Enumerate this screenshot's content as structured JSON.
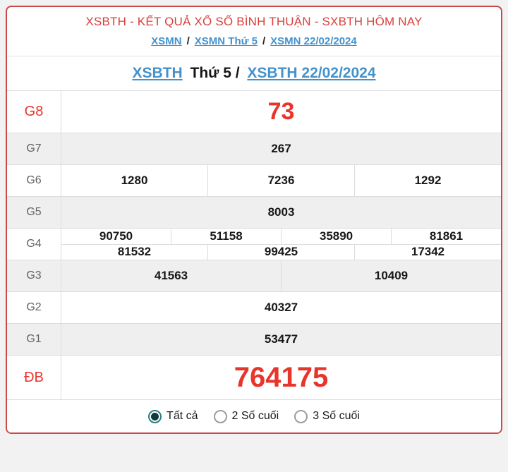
{
  "colors": {
    "red": "#e8352b",
    "title-red": "#d9403c",
    "border-red": "#c9494d",
    "blue": "#4292cd",
    "stripe": "#efefef",
    "teal": "#2a7f7f",
    "teal-dark": "#11393e"
  },
  "header": {
    "title": "XSBTH - KẾT QUẢ XỔ SỐ BÌNH THUẬN - SXBTH HÔM NAY"
  },
  "breadcrumb": {
    "separator": "/",
    "items": [
      "XSMN",
      "XSMN Thứ 5",
      "XSMN 22/02/2024"
    ]
  },
  "subheader": {
    "link1": "XSBTH",
    "middle": "Thứ 5 /",
    "link2": "XSBTH 22/02/2024"
  },
  "table": {
    "rows": [
      {
        "id": "g8",
        "label": "G8",
        "red": true,
        "size": "xl",
        "stripe": false,
        "lines": [
          [
            "73"
          ]
        ]
      },
      {
        "id": "g7",
        "label": "G7",
        "red": false,
        "size": "",
        "stripe": true,
        "lines": [
          [
            "267"
          ]
        ]
      },
      {
        "id": "g6",
        "label": "G6",
        "red": false,
        "size": "",
        "stripe": false,
        "lines": [
          [
            "1280",
            "7236",
            "1292"
          ]
        ]
      },
      {
        "id": "g5",
        "label": "G5",
        "red": false,
        "size": "",
        "stripe": true,
        "lines": [
          [
            "8003"
          ]
        ]
      },
      {
        "id": "g4",
        "label": "G4",
        "red": false,
        "size": "",
        "stripe": false,
        "lines": [
          [
            "90750",
            "51158",
            "35890",
            "81861"
          ],
          [
            "81532",
            "99425",
            "17342"
          ]
        ]
      },
      {
        "id": "g3",
        "label": "G3",
        "red": false,
        "size": "",
        "stripe": true,
        "lines": [
          [
            "41563",
            "10409"
          ]
        ]
      },
      {
        "id": "g2",
        "label": "G2",
        "red": false,
        "size": "",
        "stripe": false,
        "lines": [
          [
            "40327"
          ]
        ]
      },
      {
        "id": "g1",
        "label": "G1",
        "red": false,
        "size": "",
        "stripe": true,
        "lines": [
          [
            "53477"
          ]
        ]
      },
      {
        "id": "db",
        "label": "ĐB",
        "red": true,
        "size": "xl2",
        "stripe": false,
        "lines": [
          [
            "764175"
          ]
        ]
      }
    ]
  },
  "footer": {
    "options": [
      {
        "label": "Tất cả",
        "selected": true
      },
      {
        "label": "2 Số cuối",
        "selected": false
      },
      {
        "label": "3 Số cuối",
        "selected": false
      }
    ]
  }
}
